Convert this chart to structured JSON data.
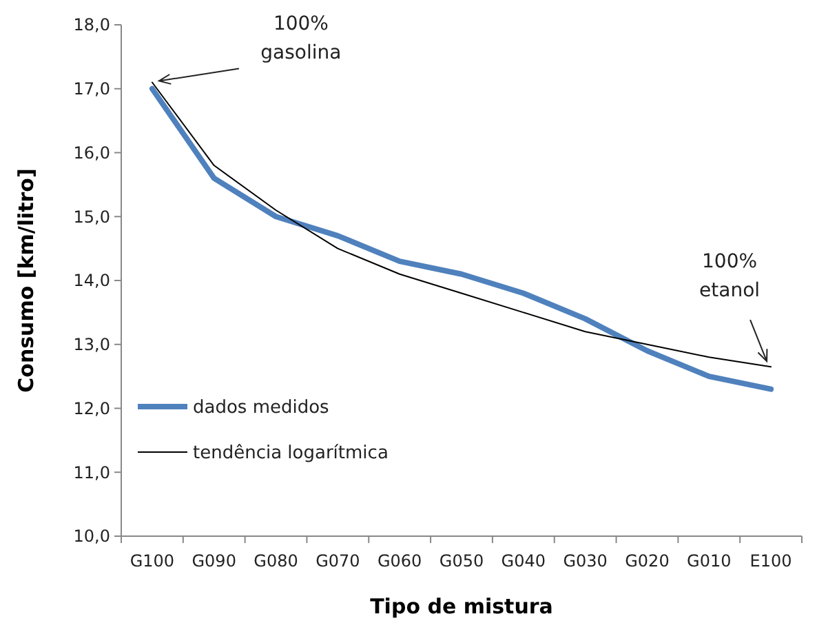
{
  "chart_data": {
    "type": "line",
    "xlabel": "Tipo de mistura",
    "ylabel": "Consumo [km/litro]",
    "categories": [
      "G100",
      "G090",
      "G080",
      "G070",
      "G060",
      "G050",
      "G040",
      "G030",
      "G020",
      "G010",
      "E100"
    ],
    "series": [
      {
        "name": "dados medidos",
        "color": "#4f81bd",
        "values": [
          17.0,
          15.6,
          15.0,
          14.7,
          14.3,
          14.1,
          13.8,
          13.4,
          12.9,
          12.5,
          12.3
        ]
      },
      {
        "name": "tendência logarítmica",
        "color": "#000000",
        "values": [
          17.1,
          15.8,
          15.1,
          14.5,
          14.1,
          13.8,
          13.5,
          13.2,
          13.0,
          12.8,
          12.65
        ]
      }
    ],
    "ylim": [
      10,
      18
    ],
    "yticks": [
      {
        "value": 10,
        "label": "10,0"
      },
      {
        "value": 11,
        "label": "11,0"
      },
      {
        "value": 12,
        "label": "12,0"
      },
      {
        "value": 13,
        "label": "13,0"
      },
      {
        "value": 14,
        "label": "14,0"
      },
      {
        "value": 15,
        "label": "15,0"
      },
      {
        "value": 16,
        "label": "16,0"
      },
      {
        "value": 17,
        "label": "17,0"
      },
      {
        "value": 18,
        "label": "18,0"
      }
    ],
    "legend": "left",
    "grid": false,
    "annotations": [
      {
        "text": "100%\ngasolina",
        "x": "G100",
        "y": 17.1
      },
      {
        "text": "100%\netanol",
        "x": "E100",
        "y": 12.65
      }
    ]
  }
}
